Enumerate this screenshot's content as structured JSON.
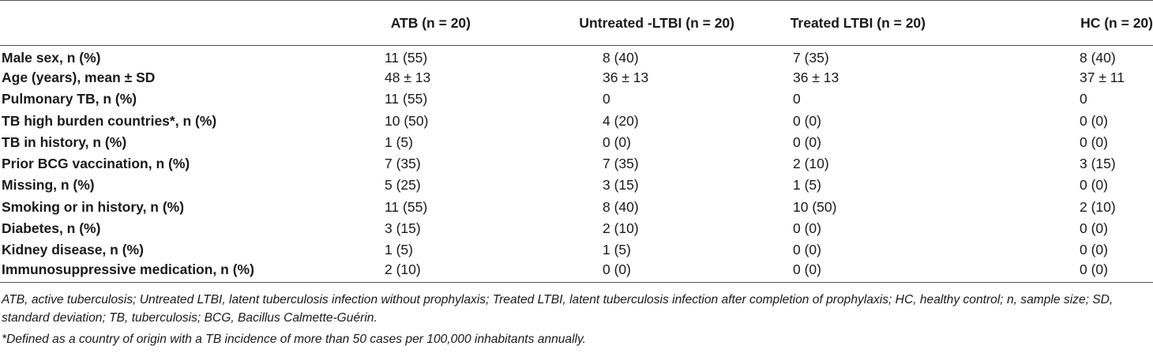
{
  "table": {
    "columns": [
      "",
      "ATB (n = 20)",
      "Untreated -LTBI (n = 20)",
      "Treated LTBI (n = 20)",
      "HC (n = 20)"
    ],
    "rows": [
      [
        "Male sex, n (%)",
        "11 (55)",
        "8 (40)",
        "7 (35)",
        "8 (40)"
      ],
      [
        "Age (years), mean ± SD",
        "48 ± 13",
        "36 ± 13",
        "36 ± 13",
        "37 ± 11"
      ],
      [
        "Pulmonary TB, n (%)",
        "11 (55)",
        "0",
        "0",
        "0"
      ],
      [
        "TB high burden countries*, n (%)",
        "10 (50)",
        "4 (20)",
        "0 (0)",
        "0 (0)"
      ],
      [
        "TB in history, n (%)",
        "1 (5)",
        "0 (0)",
        "0 (0)",
        "0 (0)"
      ],
      [
        "Prior BCG vaccination, n (%)",
        "7 (35)",
        "7 (35)",
        "2 (10)",
        "3 (15)"
      ],
      [
        "Missing, n (%)",
        "5 (25)",
        "3 (15)",
        "1 (5)",
        "0 (0)"
      ],
      [
        "Smoking or in history, n (%)",
        "11 (55)",
        "8 (40)",
        "10 (50)",
        "2 (10)"
      ],
      [
        "Diabetes, n (%)",
        "3 (15)",
        "2 (10)",
        "0 (0)",
        "0 (0)"
      ],
      [
        "Kidney disease, n (%)",
        "1 (5)",
        "1 (5)",
        "0 (0)",
        "0 (0)"
      ],
      [
        "Immunosuppressive medication, n (%)",
        "2 (10)",
        "0 (0)",
        "0 (0)",
        "0 (0)"
      ]
    ]
  },
  "footnotes": {
    "abbreviations": "ATB, active tuberculosis; Untreated LTBI, latent tuberculosis infection without prophylaxis; Treated LTBI, latent tuberculosis infection after completion of prophylaxis; HC, healthy control; n, sample size; SD, standard deviation; TB, tuberculosis; BCG, Bacillus Calmette-Guérin.",
    "asterisk": "*Defined as a country of origin with a TB incidence of more than 50 cases per 100,000 inhabitants annually."
  }
}
